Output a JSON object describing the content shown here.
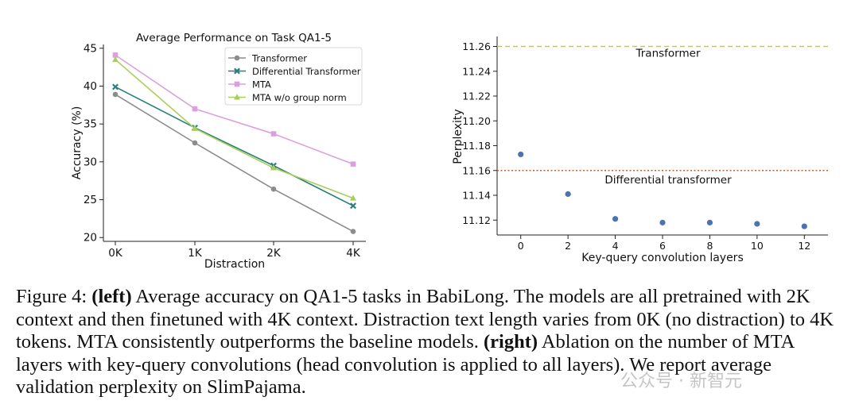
{
  "chart_data": [
    {
      "type": "line",
      "title": "Average Performance on Task QA1-5",
      "xlabel": "Distraction",
      "ylabel": "Accuracy (%)",
      "categories": [
        "0K",
        "1K",
        "2K",
        "4K"
      ],
      "ylim": [
        19.5,
        45.5
      ],
      "yticks": [
        20,
        25,
        30,
        35,
        40,
        45
      ],
      "legend": "top-right",
      "grid": false,
      "series": [
        {
          "name": "Transformer",
          "values": [
            38.9,
            32.5,
            26.4,
            20.8
          ],
          "color": "#8c8c8c",
          "marker": "circle"
        },
        {
          "name": "Differential Transformer",
          "values": [
            39.9,
            34.5,
            29.5,
            24.2
          ],
          "color": "#2a7f7a",
          "marker": "x"
        },
        {
          "name": "MTA",
          "values": [
            44.1,
            37.0,
            33.7,
            29.7
          ],
          "color": "#dba0dd",
          "marker": "square"
        },
        {
          "name": "MTA w/o group norm",
          "values": [
            43.5,
            34.4,
            29.2,
            25.2
          ],
          "color": "#a8cf5a",
          "marker": "triangle"
        }
      ]
    },
    {
      "type": "scatter",
      "title": "",
      "xlabel": "Key-query convolution layers",
      "ylabel": "Perplexity",
      "x": [
        0,
        2,
        4,
        6,
        8,
        10,
        12
      ],
      "y": [
        11.173,
        11.141,
        11.121,
        11.118,
        11.118,
        11.117,
        11.115
      ],
      "xticks": [
        0,
        2,
        4,
        6,
        8,
        10,
        12
      ],
      "yticks": [
        11.12,
        11.14,
        11.16,
        11.18,
        11.2,
        11.22,
        11.24,
        11.26
      ],
      "xlim": [
        -1,
        13
      ],
      "ylim": [
        11.108,
        11.268
      ],
      "point_color": "#4c72b0",
      "reference_lines": [
        {
          "label": "Transformer",
          "value": 11.26,
          "color": "#c2c27a",
          "style": "dashed"
        },
        {
          "label": "Differential transformer",
          "value": 11.16,
          "color": "#c0603a",
          "style": "dotted"
        }
      ]
    }
  ],
  "caption": {
    "prefix": "Figure 4: ",
    "left_label": "(left)",
    "left_text": " Average accuracy on QA1-5 tasks in BabiLong. The models are all pretrained with 2K context and then finetuned with 4K context. Distraction text length varies from 0K (no distraction) to 4K tokens. MTA consistently outperforms the baseline models. ",
    "right_label": "(right)",
    "right_text": " Ablation on the number of MTA layers with key-query convolutions (head convolution is applied to all layers). We report average validation perplexity on SlimPajama."
  },
  "watermark": "公众号 · 新智元"
}
